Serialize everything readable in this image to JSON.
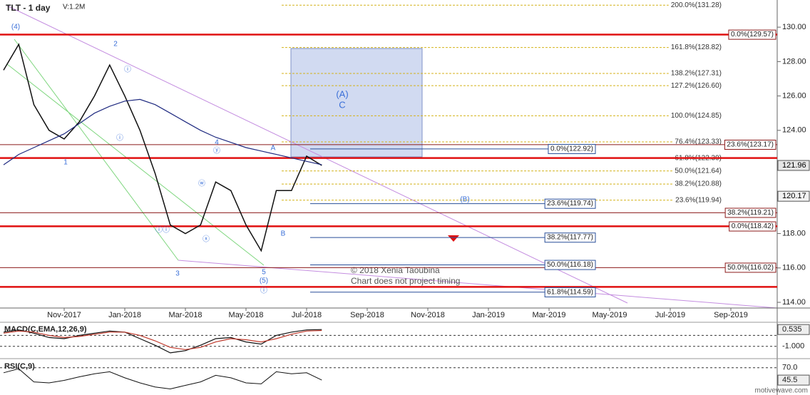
{
  "chart_data": {
    "type": "line",
    "title": "TLT - 1 day",
    "subtitle": "V:1.2M",
    "categories": [
      null,
      null,
      null,
      null,
      "Nov-2017",
      null,
      null,
      null,
      "Jan-2018",
      null,
      null,
      null,
      "Mar-2018",
      null,
      null,
      null,
      "May-2018",
      null,
      null,
      null,
      "Jul-2018",
      null,
      null,
      null,
      "Sep-2018",
      null,
      null,
      null,
      "Nov-2018",
      null,
      null,
      null,
      "Jan-2019",
      null,
      null,
      null,
      "Mar-2019",
      null,
      null,
      null,
      "May-2019",
      null,
      null,
      null,
      "Jul-2019",
      null,
      null,
      null,
      "Sep-2019"
    ],
    "series": [
      {
        "color": "#111111",
        "values": [
          127.5,
          129.0,
          125.5,
          124.0,
          123.5,
          124.5,
          126.0,
          127.8,
          126.0,
          124.0,
          121.5,
          118.5,
          118.0,
          118.5,
          121.0,
          120.5,
          118.5,
          117.0,
          120.5,
          120.5,
          122.5,
          121.96,
          null,
          null,
          null,
          null,
          null,
          null,
          null,
          null,
          null,
          null,
          null,
          null,
          null,
          null,
          null,
          null,
          null,
          null,
          null,
          null,
          null,
          null,
          null,
          null,
          null,
          null,
          null
        ]
      },
      {
        "color": "#1f2a80",
        "values": [
          122.0,
          122.6,
          123.0,
          123.4,
          123.8,
          124.4,
          125.0,
          125.4,
          125.7,
          125.8,
          125.5,
          125.0,
          124.5,
          124.0,
          123.6,
          123.3,
          123.0,
          122.8,
          122.6,
          122.4,
          122.2,
          122.0,
          null,
          null,
          null,
          null,
          null,
          null,
          null,
          null,
          null,
          null,
          null,
          null,
          null,
          null,
          null,
          null,
          null,
          null,
          null,
          null,
          null,
          null,
          null,
          null,
          null,
          null,
          null
        ]
      }
    ],
    "ylim": [
      113.67,
      131.58
    ],
    "yticks": [
      {
        "value": 114,
        "label": "114.00"
      },
      {
        "value": 116,
        "label": "116.00"
      },
      {
        "value": 118,
        "label": "118.00"
      },
      {
        "value": 120,
        "label": "120.00"
      },
      {
        "value": 122,
        "label": "122.00"
      },
      {
        "value": 124,
        "label": "124.00"
      },
      {
        "value": 126,
        "label": "126.00"
      },
      {
        "value": 128,
        "label": "128.00"
      },
      {
        "value": 130,
        "label": "130.00"
      }
    ],
    "last_price": 121.96,
    "marker_price": 120.17,
    "extensions": [
      {
        "value": 131.28,
        "label": "200.0%(131.28)"
      },
      {
        "value": 128.82,
        "label": "161.8%(128.82)"
      },
      {
        "value": 127.31,
        "label": "138.2%(127.31)"
      },
      {
        "value": 126.6,
        "label": "127.2%(126.60)"
      },
      {
        "value": 124.85,
        "label": "100.0%(124.85)"
      },
      {
        "value": 123.33,
        "label": "76.4%(123.33)"
      },
      {
        "value": 122.39,
        "label": "61.8%(122.39)"
      },
      {
        "value": 121.64,
        "label": "50.0%(121.64)"
      },
      {
        "value": 120.88,
        "label": "38.2%(120.88)"
      },
      {
        "value": 119.94,
        "label": "23.6%(119.94)"
      }
    ],
    "extension_color": "#d4b21a",
    "levels": [
      {
        "value": 129.57,
        "label": "0.0%(129.57)",
        "width": 2.5
      },
      {
        "value": 123.17,
        "label": "23.6%(123.17)",
        "width": 1
      },
      {
        "value": 122.39,
        "width": 2.5
      },
      {
        "value": 119.21,
        "label": "38.2%(119.21)",
        "width": 1
      },
      {
        "value": 118.42,
        "label": "0.0%(118.42)",
        "width": 2.5
      },
      {
        "value": 116.02,
        "label": "50.0%(116.02)",
        "width": 1
      },
      {
        "value": 114.9,
        "width": 2.5
      }
    ],
    "level_color": "#e01010",
    "retracements": [
      {
        "value": 122.92,
        "label": "0.0%(122.92)"
      },
      {
        "value": 119.74,
        "label": "23.6%(119.74)"
      },
      {
        "value": 117.77,
        "label": "38.2%(117.77)"
      },
      {
        "value": 116.18,
        "label": "50.0%(116.18)"
      },
      {
        "value": 114.59,
        "label": "61.8%(114.59)"
      }
    ],
    "retracement_color": "#2a4f9a",
    "annotations": [
      "(4)",
      "2",
      "1",
      "3",
      "4",
      "5",
      "(5)",
      "A",
      "B",
      "(A)",
      "C",
      "(B)",
      "ⓦ",
      "ⓧ",
      "ⓨ",
      "ⓘ",
      "ⓘ",
      "ⓘ",
      "ⓘⓘ"
    ],
    "annotation_color": "#3a6fd8",
    "copyright": "© 2018 Xenia Taoubina",
    "note": "Chart does not project timing",
    "macd": {
      "title": "MACD(C,EMA,12,26,9)",
      "ylim": [
        -2.13,
        1.2
      ],
      "yticks": [
        {
          "value": -1,
          "label": "-1.000"
        }
      ],
      "last": 0.535,
      "series": [
        {
          "color": "#111111",
          "values": [
            0.3,
            0.5,
            0.2,
            -0.2,
            -0.3,
            0.0,
            0.2,
            0.4,
            0.3,
            -0.3,
            -0.9,
            -1.6,
            -1.4,
            -0.9,
            -0.3,
            -0.2,
            -0.6,
            -0.8,
            0.0,
            0.3,
            0.5,
            0.535,
            null,
            null,
            null,
            null,
            null,
            null,
            null,
            null,
            null,
            null,
            null,
            null,
            null,
            null,
            null,
            null,
            null,
            null,
            null,
            null,
            null,
            null,
            null,
            null,
            null,
            null,
            null
          ]
        },
        {
          "color": "#c0392b",
          "values": [
            0.2,
            0.4,
            0.3,
            0.0,
            -0.2,
            -0.1,
            0.1,
            0.3,
            0.3,
            0.0,
            -0.5,
            -1.1,
            -1.3,
            -1.1,
            -0.6,
            -0.3,
            -0.4,
            -0.6,
            -0.3,
            0.1,
            0.4,
            0.45,
            null,
            null,
            null,
            null,
            null,
            null,
            null,
            null,
            null,
            null,
            null,
            null,
            null,
            null,
            null,
            null,
            null,
            null,
            null,
            null,
            null,
            null,
            null,
            null,
            null,
            null,
            null
          ]
        }
      ]
    },
    "rsi": {
      "title": "RSI(C,9)",
      "ylim": [
        16,
        88
      ],
      "yticks": [
        {
          "value": 70,
          "label": "70.0"
        }
      ],
      "last": 45.5,
      "color": "#111111",
      "values": [
        60,
        68,
        42,
        40,
        45,
        52,
        58,
        62,
        50,
        40,
        32,
        28,
        35,
        42,
        55,
        50,
        40,
        38,
        62,
        58,
        60,
        45.5,
        null,
        null,
        null,
        null,
        null,
        null,
        null,
        null,
        null,
        null,
        null,
        null,
        null,
        null,
        null,
        null,
        null,
        null,
        null,
        null,
        null,
        null,
        null,
        null,
        null,
        null,
        null
      ]
    }
  },
  "footer": "motivewave.com"
}
